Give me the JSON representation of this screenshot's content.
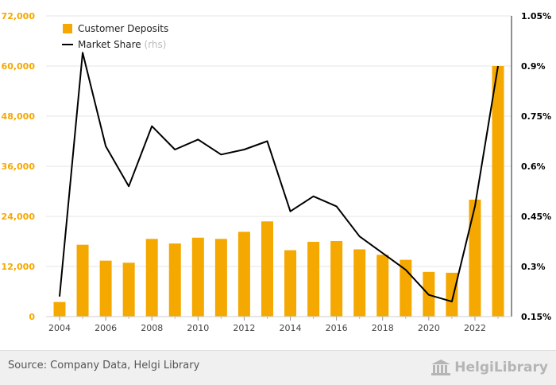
{
  "chart_data": {
    "type": "bar+line",
    "title": "",
    "x": [
      2004,
      2005,
      2006,
      2007,
      2008,
      2009,
      2010,
      2011,
      2012,
      2013,
      2014,
      2015,
      2016,
      2017,
      2018,
      2019,
      2020,
      2021,
      2022,
      2023
    ],
    "x_tick_labels": [
      "2004",
      "2006",
      "2008",
      "2010",
      "2012",
      "2014",
      "2016",
      "2018",
      "2020",
      "2022"
    ],
    "series": [
      {
        "name": "Customer Deposits",
        "kind": "bar",
        "axis": "left",
        "color": "#F5A800",
        "values": [
          3500,
          17200,
          13400,
          12900,
          18600,
          17500,
          18900,
          18600,
          20300,
          22800,
          15900,
          17900,
          18100,
          16100,
          14800,
          13600,
          10700,
          10500,
          28000,
          60000
        ]
      },
      {
        "name": "Market Share",
        "kind": "line",
        "axis": "right",
        "color": "#000000",
        "values": [
          0.21,
          0.94,
          0.66,
          0.54,
          0.72,
          0.65,
          0.68,
          0.635,
          0.65,
          0.675,
          0.465,
          0.51,
          0.48,
          0.39,
          0.34,
          0.29,
          0.215,
          0.195,
          0.48,
          0.9
        ]
      }
    ],
    "y_left": {
      "min": 0,
      "max": 72000,
      "ticks": [
        0,
        12000,
        24000,
        36000,
        48000,
        60000,
        72000
      ],
      "tick_labels": [
        "0",
        "12,000",
        "24,000",
        "36,000",
        "48,000",
        "60,000",
        "72,000"
      ],
      "tick_color": "#F5A800"
    },
    "y_right": {
      "min": 0.15,
      "max": 1.05,
      "ticks": [
        0.15,
        0.3,
        0.45,
        0.6,
        0.75,
        0.9,
        1.05
      ],
      "tick_labels": [
        "0.15%",
        "0.3%",
        "0.45%",
        "0.6%",
        "0.75%",
        "0.9%",
        "1.05%"
      ],
      "tick_color": "#000000"
    },
    "legend": {
      "placement": "top-left",
      "items": [
        {
          "label": "Customer Deposits",
          "suffix": "",
          "swatch": "square",
          "color": "#F5A800"
        },
        {
          "label": "Market Share",
          "suffix": "(rhs)",
          "swatch": "line",
          "color": "#000000"
        }
      ]
    },
    "grid": true
  },
  "footer": {
    "source": "Source: Company Data, Helgi Library",
    "brand": "HelgiLibrary",
    "brand_icon": "library-building-icon"
  }
}
